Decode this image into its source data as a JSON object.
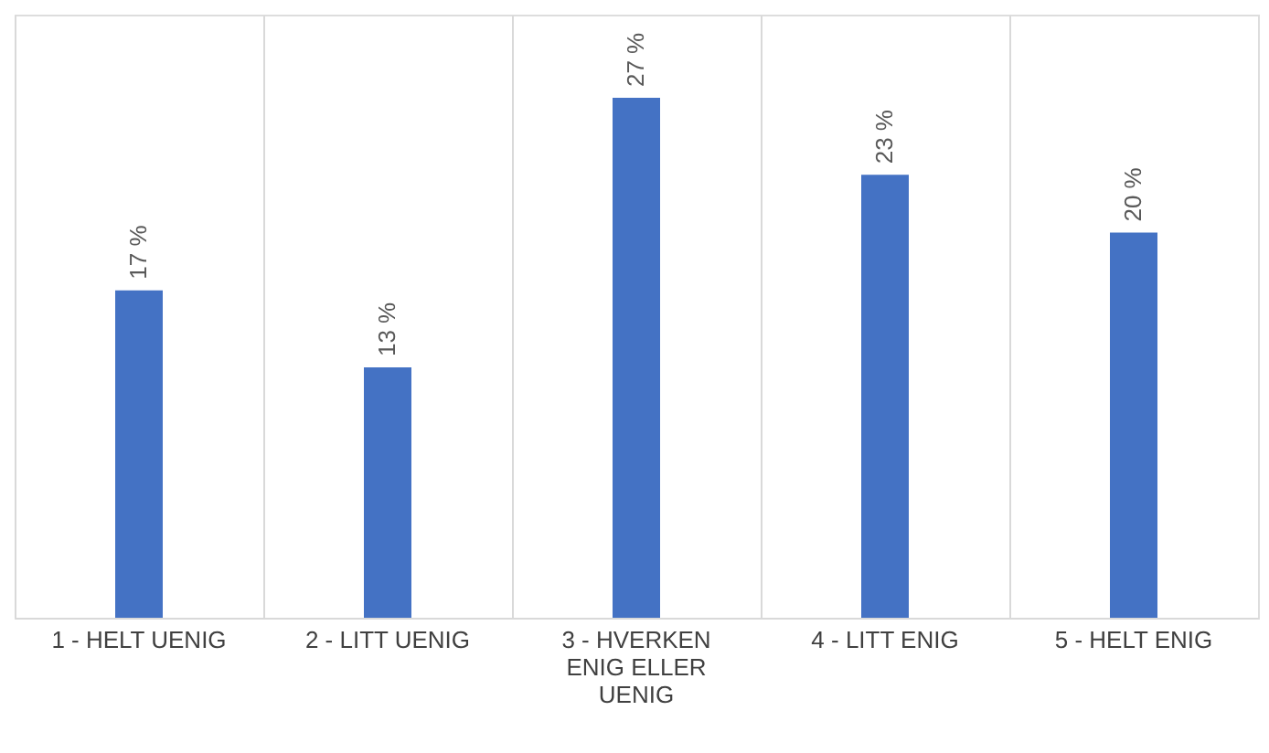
{
  "chart_data": {
    "type": "bar",
    "categories": [
      "1 - HELT UENIG",
      "2 - LITT UENIG",
      "3 - HVERKEN ENIG ELLER UENIG",
      "4 - LITT ENIG",
      "5 - HELT ENIG"
    ],
    "values": [
      17,
      13,
      27,
      23,
      20
    ],
    "value_labels": [
      "17 %",
      "13 %",
      "27 %",
      "23 %",
      "20 %"
    ],
    "color": "#4472c4",
    "grid": "x"
  }
}
